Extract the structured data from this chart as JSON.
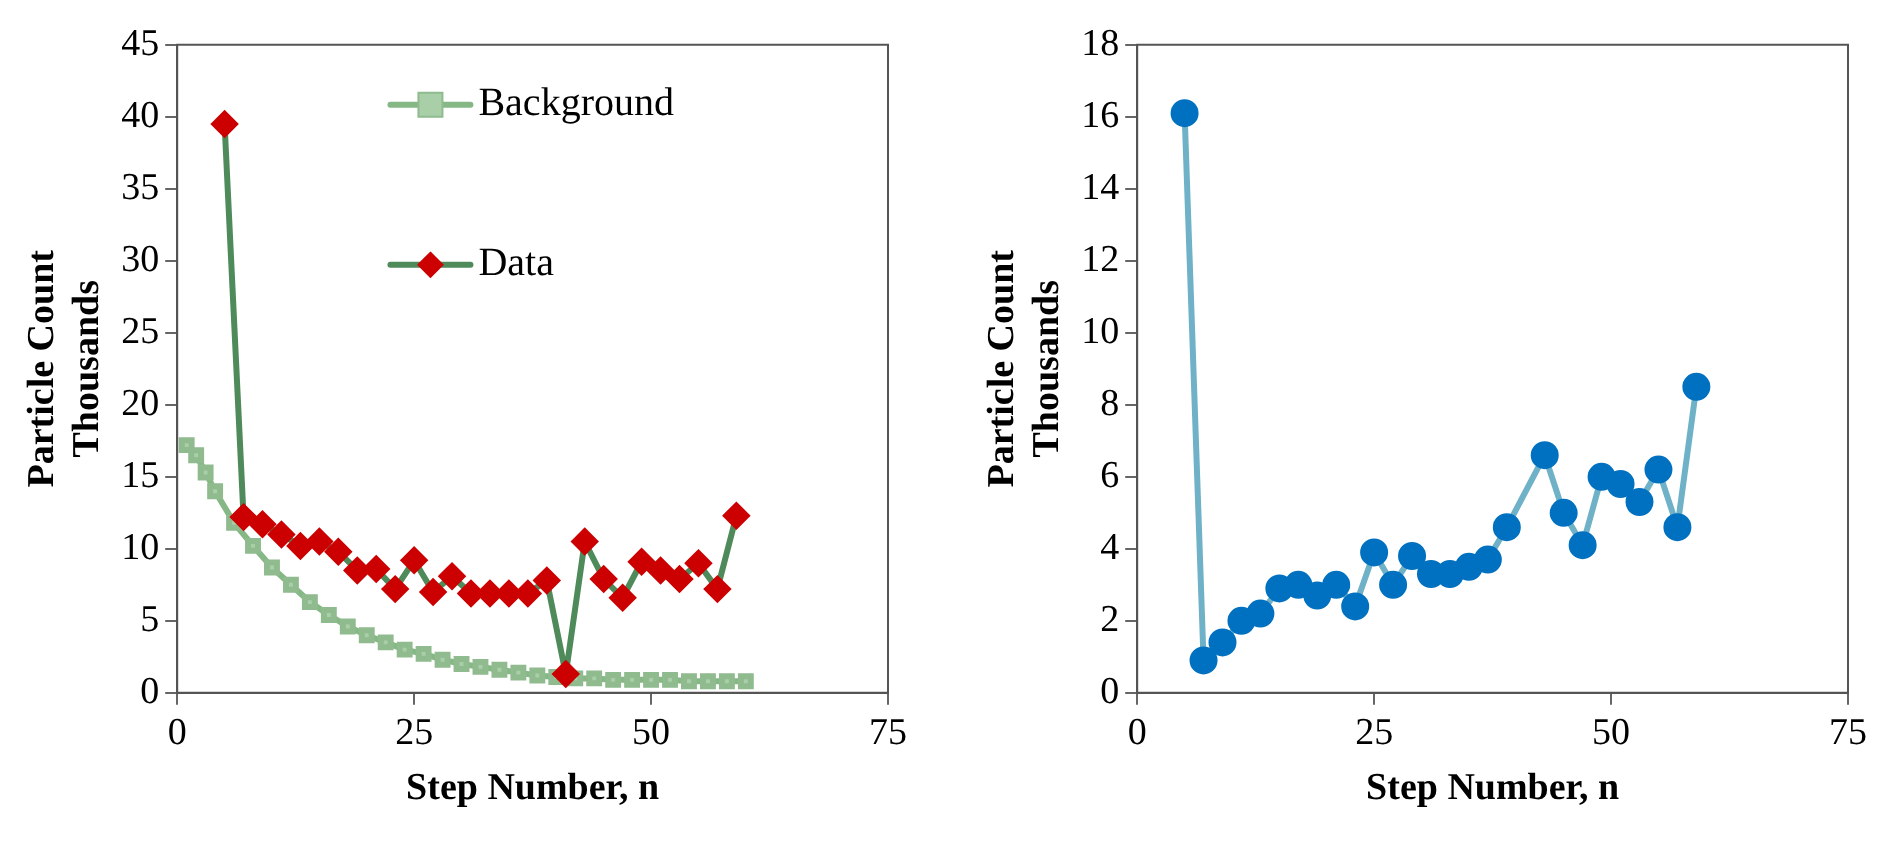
{
  "chart_data": [
    {
      "type": "line",
      "xlabel": "Step Number, n",
      "ylabel": "Particle Count\nThousands",
      "xlim": [
        0,
        75
      ],
      "xticks": [
        0,
        25,
        50,
        75
      ],
      "ylim": [
        0,
        45
      ],
      "yticks": [
        0,
        5,
        10,
        15,
        20,
        25,
        30,
        35,
        40,
        45
      ],
      "grid": false,
      "legend": "top right",
      "series": [
        {
          "name": "Background",
          "color": "#a9cfa9",
          "marker": "square",
          "x": [
            1,
            2,
            3,
            4,
            6,
            8,
            10,
            12,
            14,
            16,
            18,
            20,
            22,
            24,
            26,
            28,
            30,
            32,
            34,
            36,
            38,
            40,
            42,
            44,
            46,
            48,
            50,
            52,
            54,
            56,
            58,
            60
          ],
          "values": [
            17.2,
            16.5,
            15.3,
            14,
            11.8,
            10.2,
            8.7,
            7.5,
            6.3,
            5.4,
            4.6,
            4.0,
            3.5,
            3.0,
            2.7,
            2.3,
            2.0,
            1.8,
            1.6,
            1.4,
            1.2,
            1.1,
            1.0,
            1.0,
            0.9,
            0.9,
            0.9,
            0.9,
            0.8,
            0.8,
            0.8,
            0.8
          ]
        },
        {
          "name": "Data",
          "color": "#cc0000",
          "marker": "diamond",
          "x": [
            5,
            7,
            9,
            11,
            13,
            15,
            17,
            19,
            21,
            23,
            25,
            27,
            29,
            31,
            33,
            35,
            37,
            39,
            41,
            43,
            45,
            47,
            49,
            51,
            53,
            55,
            57,
            59
          ],
          "values": [
            39.5,
            12.2,
            11.7,
            11,
            10.2,
            10.5,
            9.8,
            8.5,
            8.6,
            7.2,
            9.2,
            7.0,
            8.1,
            6.9,
            6.9,
            6.9,
            6.9,
            7.8,
            1.3,
            10.5,
            7.9,
            6.6,
            9.1,
            8.5,
            7.9,
            9.0,
            7.2,
            12.3
          ]
        }
      ]
    },
    {
      "type": "line",
      "xlabel": "Step Number, n",
      "ylabel": "Particle Count\nThousands",
      "xlim": [
        0,
        75
      ],
      "xticks": [
        0,
        25,
        50,
        75
      ],
      "ylim": [
        0,
        18
      ],
      "yticks": [
        0,
        2,
        4,
        6,
        8,
        10,
        12,
        14,
        16,
        18
      ],
      "grid": false,
      "legend": false,
      "series": [
        {
          "color": "#0070c0",
          "marker": "circle",
          "x": [
            5,
            7,
            9,
            11,
            13,
            15,
            17,
            19,
            21,
            23,
            25,
            27,
            29,
            31,
            33,
            35,
            37,
            39,
            43,
            45,
            47,
            49,
            51,
            53,
            55,
            57,
            59
          ],
          "values": [
            16.1,
            0.9,
            1.4,
            2.0,
            2.2,
            2.9,
            3.0,
            2.7,
            3.0,
            2.4,
            3.9,
            3.0,
            3.8,
            3.3,
            3.3,
            3.5,
            3.7,
            4.6,
            6.6,
            5.0,
            4.1,
            6.0,
            5.8,
            5.3,
            6.2,
            4.6,
            8.5
          ]
        }
      ]
    }
  ]
}
